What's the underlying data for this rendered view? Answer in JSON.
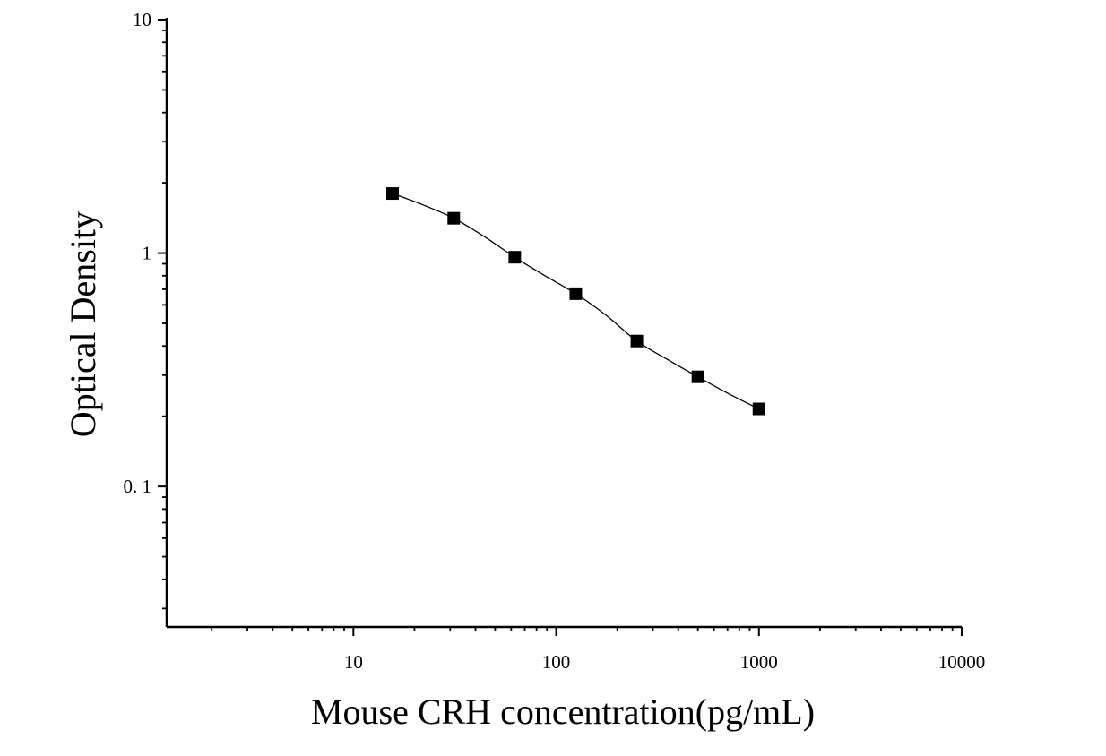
{
  "chart_data": {
    "type": "scatter",
    "xlabel": "Mouse CRH concentration(pg/mL)",
    "ylabel": "Optical Density",
    "x_scale": "log",
    "y_scale": "log",
    "xlim": [
      1.2,
      10000
    ],
    "ylim": [
      0.025,
      10
    ],
    "x_ticks": [
      {
        "value": 10,
        "label": "10"
      },
      {
        "value": 100,
        "label": "100"
      },
      {
        "value": 1000,
        "label": "1000"
      },
      {
        "value": 10000,
        "label": "10000"
      }
    ],
    "y_ticks": [
      {
        "value": 0.1,
        "label": "0. 1"
      },
      {
        "value": 1,
        "label": "1"
      },
      {
        "value": 10,
        "label": "10"
      }
    ],
    "grid": false,
    "series": [
      {
        "x": [
          15.6,
          31.25,
          62.5,
          125,
          250,
          500,
          1000
        ],
        "y": [
          1.8,
          1.41,
          0.96,
          0.67,
          0.42,
          0.295,
          0.215
        ]
      }
    ],
    "fit_curve": {
      "type": "4PL",
      "x": [
        15.6,
        22,
        31.25,
        44,
        62.5,
        88,
        125,
        177,
        250,
        354,
        500,
        707,
        1000
      ],
      "y": [
        1.8,
        1.61,
        1.41,
        1.18,
        0.96,
        0.8,
        0.67,
        0.54,
        0.42,
        0.35,
        0.295,
        0.25,
        0.215
      ]
    },
    "colors": {
      "marker": "#000000",
      "line": "#000000",
      "axis": "#000000"
    }
  }
}
